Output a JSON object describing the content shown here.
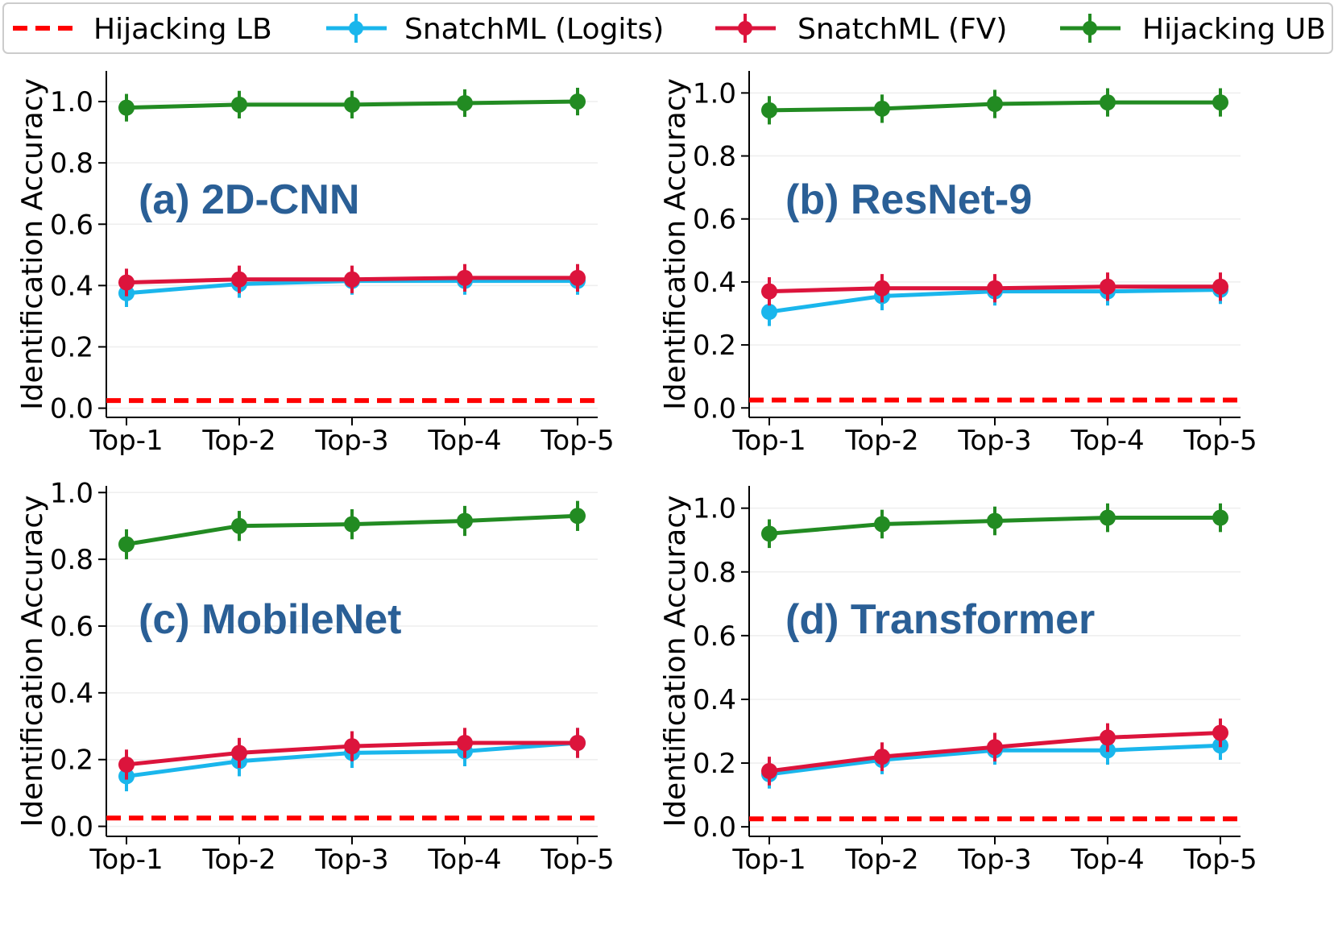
{
  "legend": {
    "items": [
      {
        "label": "Hijacking LB",
        "color": "#ff0000",
        "style": "dashed"
      },
      {
        "label": "SnatchML (Logits)",
        "color": "#1ab6ec",
        "style": "line-marker"
      },
      {
        "label": "SnatchML (FV)",
        "color": "#dc143c",
        "style": "line-marker"
      },
      {
        "label": "Hijacking UB",
        "color": "#228b22",
        "style": "line-marker"
      }
    ]
  },
  "colors": {
    "lb": "#ff0000",
    "logits": "#1ab6ec",
    "fv": "#dc143c",
    "ub": "#228b22",
    "panel_label": "#2a5f96"
  },
  "chart_data": [
    {
      "type": "line",
      "title": "(a) 2D-CNN",
      "xlabel": "",
      "ylabel": "Identification Accuracy",
      "categories": [
        "Top-1",
        "Top-2",
        "Top-3",
        "Top-4",
        "Top-5"
      ],
      "ylim": [
        -0.03,
        1.1
      ],
      "yticks": [
        "0.0",
        "0.2",
        "0.4",
        "0.6",
        "0.8",
        "1.0"
      ],
      "lb": 0.025,
      "series": [
        {
          "name": "Hijacking UB",
          "values": [
            0.98,
            0.99,
            0.99,
            0.995,
            1.0
          ],
          "err": [
            0.045,
            0.045,
            0.045,
            0.045,
            0.045
          ]
        },
        {
          "name": "SnatchML (Logits)",
          "values": [
            0.375,
            0.405,
            0.415,
            0.415,
            0.415
          ],
          "err": [
            0.045,
            0.045,
            0.045,
            0.045,
            0.045
          ]
        },
        {
          "name": "SnatchML (FV)",
          "values": [
            0.41,
            0.42,
            0.42,
            0.425,
            0.425
          ],
          "err": [
            0.045,
            0.045,
            0.045,
            0.045,
            0.045
          ]
        }
      ]
    },
    {
      "type": "line",
      "title": "(b) ResNet-9",
      "xlabel": "",
      "ylabel": "Identification Accuracy",
      "categories": [
        "Top-1",
        "Top-2",
        "Top-3",
        "Top-4",
        "Top-5"
      ],
      "ylim": [
        -0.03,
        1.07
      ],
      "yticks": [
        "0.0",
        "0.2",
        "0.4",
        "0.6",
        "0.8",
        "1.0"
      ],
      "lb": 0.025,
      "series": [
        {
          "name": "Hijacking UB",
          "values": [
            0.945,
            0.95,
            0.965,
            0.97,
            0.97
          ],
          "err": [
            0.045,
            0.045,
            0.045,
            0.045,
            0.045
          ]
        },
        {
          "name": "SnatchML (Logits)",
          "values": [
            0.305,
            0.355,
            0.37,
            0.37,
            0.375
          ],
          "err": [
            0.045,
            0.045,
            0.045,
            0.045,
            0.045
          ]
        },
        {
          "name": "SnatchML (FV)",
          "values": [
            0.37,
            0.38,
            0.38,
            0.385,
            0.385
          ],
          "err": [
            0.045,
            0.045,
            0.045,
            0.045,
            0.045
          ]
        }
      ]
    },
    {
      "type": "line",
      "title": "(c) MobileNet",
      "xlabel": "",
      "ylabel": "Identification Accuracy",
      "categories": [
        "Top-1",
        "Top-2",
        "Top-3",
        "Top-4",
        "Top-5"
      ],
      "ylim": [
        -0.03,
        1.02
      ],
      "yticks": [
        "0.0",
        "0.2",
        "0.4",
        "0.6",
        "0.8",
        "1.0"
      ],
      "lb": 0.025,
      "series": [
        {
          "name": "Hijacking UB",
          "values": [
            0.845,
            0.9,
            0.905,
            0.915,
            0.93
          ],
          "err": [
            0.045,
            0.045,
            0.045,
            0.045,
            0.045
          ]
        },
        {
          "name": "SnatchML (Logits)",
          "values": [
            0.15,
            0.195,
            0.22,
            0.225,
            0.25
          ],
          "err": [
            0.045,
            0.045,
            0.045,
            0.045,
            0.045
          ]
        },
        {
          "name": "SnatchML (FV)",
          "values": [
            0.185,
            0.22,
            0.24,
            0.25,
            0.25
          ],
          "err": [
            0.045,
            0.045,
            0.045,
            0.045,
            0.045
          ]
        }
      ]
    },
    {
      "type": "line",
      "title": "(d) Transformer",
      "xlabel": "",
      "ylabel": "Identification Accuracy",
      "categories": [
        "Top-1",
        "Top-2",
        "Top-3",
        "Top-4",
        "Top-5"
      ],
      "ylim": [
        -0.03,
        1.07
      ],
      "yticks": [
        "0.0",
        "0.2",
        "0.4",
        "0.6",
        "0.8",
        "1.0"
      ],
      "lb": 0.025,
      "series": [
        {
          "name": "Hijacking UB",
          "values": [
            0.92,
            0.95,
            0.96,
            0.97,
            0.97
          ],
          "err": [
            0.045,
            0.045,
            0.045,
            0.045,
            0.045
          ]
        },
        {
          "name": "SnatchML (Logits)",
          "values": [
            0.165,
            0.21,
            0.24,
            0.24,
            0.255
          ],
          "err": [
            0.045,
            0.045,
            0.045,
            0.045,
            0.045
          ]
        },
        {
          "name": "SnatchML (FV)",
          "values": [
            0.175,
            0.22,
            0.25,
            0.28,
            0.295
          ],
          "err": [
            0.045,
            0.045,
            0.045,
            0.045,
            0.045
          ]
        }
      ]
    }
  ]
}
